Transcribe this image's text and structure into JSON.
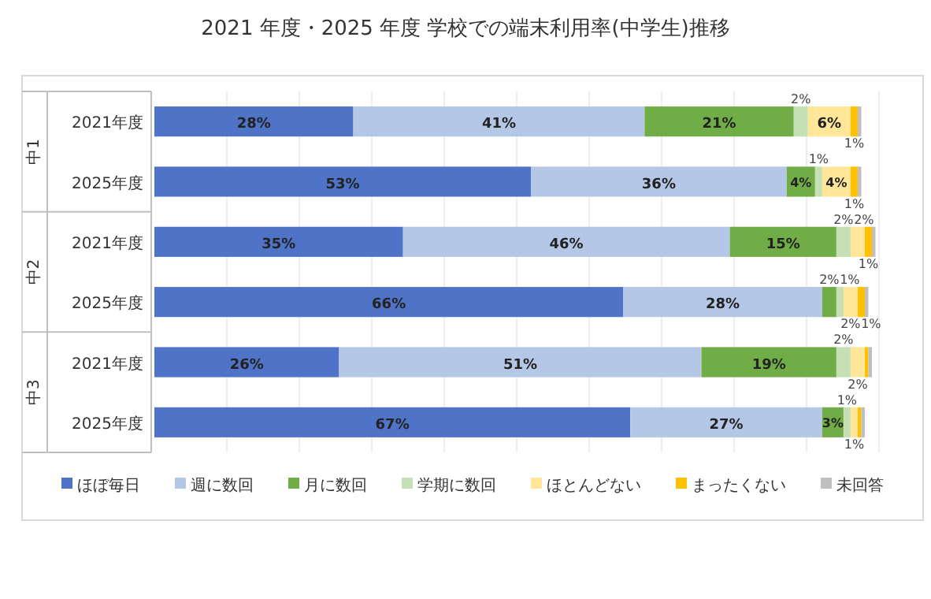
{
  "chart_data": {
    "type": "bar",
    "orientation": "horizontal",
    "stacked": true,
    "title": "2021 年度・2025 年度  学校での端末利用率(中学生)推移",
    "categories": [
      "2021年度",
      "2025年度",
      "2021年度",
      "2025年度",
      "2021年度",
      "2025年度"
    ],
    "annotations": [
      "中1",
      "中2",
      "中3"
    ],
    "xlim": [
      0,
      102
    ],
    "tick_labels": "y",
    "grid": "x",
    "legend": "bottom",
    "data_labels": true,
    "series": [
      {
        "name": "ほぼ毎日",
        "color": "#4f73c6",
        "values": [
          28,
          53,
          35,
          66,
          26,
          67
        ],
        "value_labels": [
          "28%",
          "53%",
          "35%",
          "66%",
          "26%",
          "67%"
        ]
      },
      {
        "name": "週に数回",
        "color": "#b4c7e7",
        "values": [
          41,
          36,
          46,
          28,
          51,
          27
        ],
        "value_labels": [
          "41%",
          "36%",
          "46%",
          "28%",
          "51%",
          "27%"
        ]
      },
      {
        "name": "月に数回",
        "color": "#70ad47",
        "values": [
          21,
          4,
          15,
          2,
          19,
          3
        ],
        "value_labels": [
          "21%",
          "4%",
          "15%",
          "2%",
          "19%",
          "3%"
        ]
      },
      {
        "name": "学期に数回",
        "color": "#c5e0b4",
        "values": [
          2,
          1,
          2,
          1,
          2,
          1
        ],
        "value_labels": [
          "2%",
          "1%",
          "2%",
          "1%",
          "2%",
          "1%"
        ]
      },
      {
        "name": "ほとんどない",
        "color": "#ffe699",
        "values": [
          6,
          4,
          2,
          2,
          2,
          1
        ],
        "value_labels": [
          "6%",
          "4%",
          "2%",
          "2%",
          "2%",
          "1%"
        ]
      },
      {
        "name": "まったくない",
        "color": "#ffc000",
        "values": [
          1,
          1,
          1,
          1,
          0.5,
          0.5
        ],
        "value_labels": [
          "1%",
          "1%",
          "1%",
          "1%",
          null,
          null
        ]
      },
      {
        "name": "未回答",
        "color": "#bfbfbf",
        "values": [
          0.5,
          0.5,
          0.5,
          0.5,
          0.5,
          0.5
        ],
        "value_labels": [
          null,
          null,
          null,
          null,
          null,
          null
        ]
      }
    ]
  }
}
